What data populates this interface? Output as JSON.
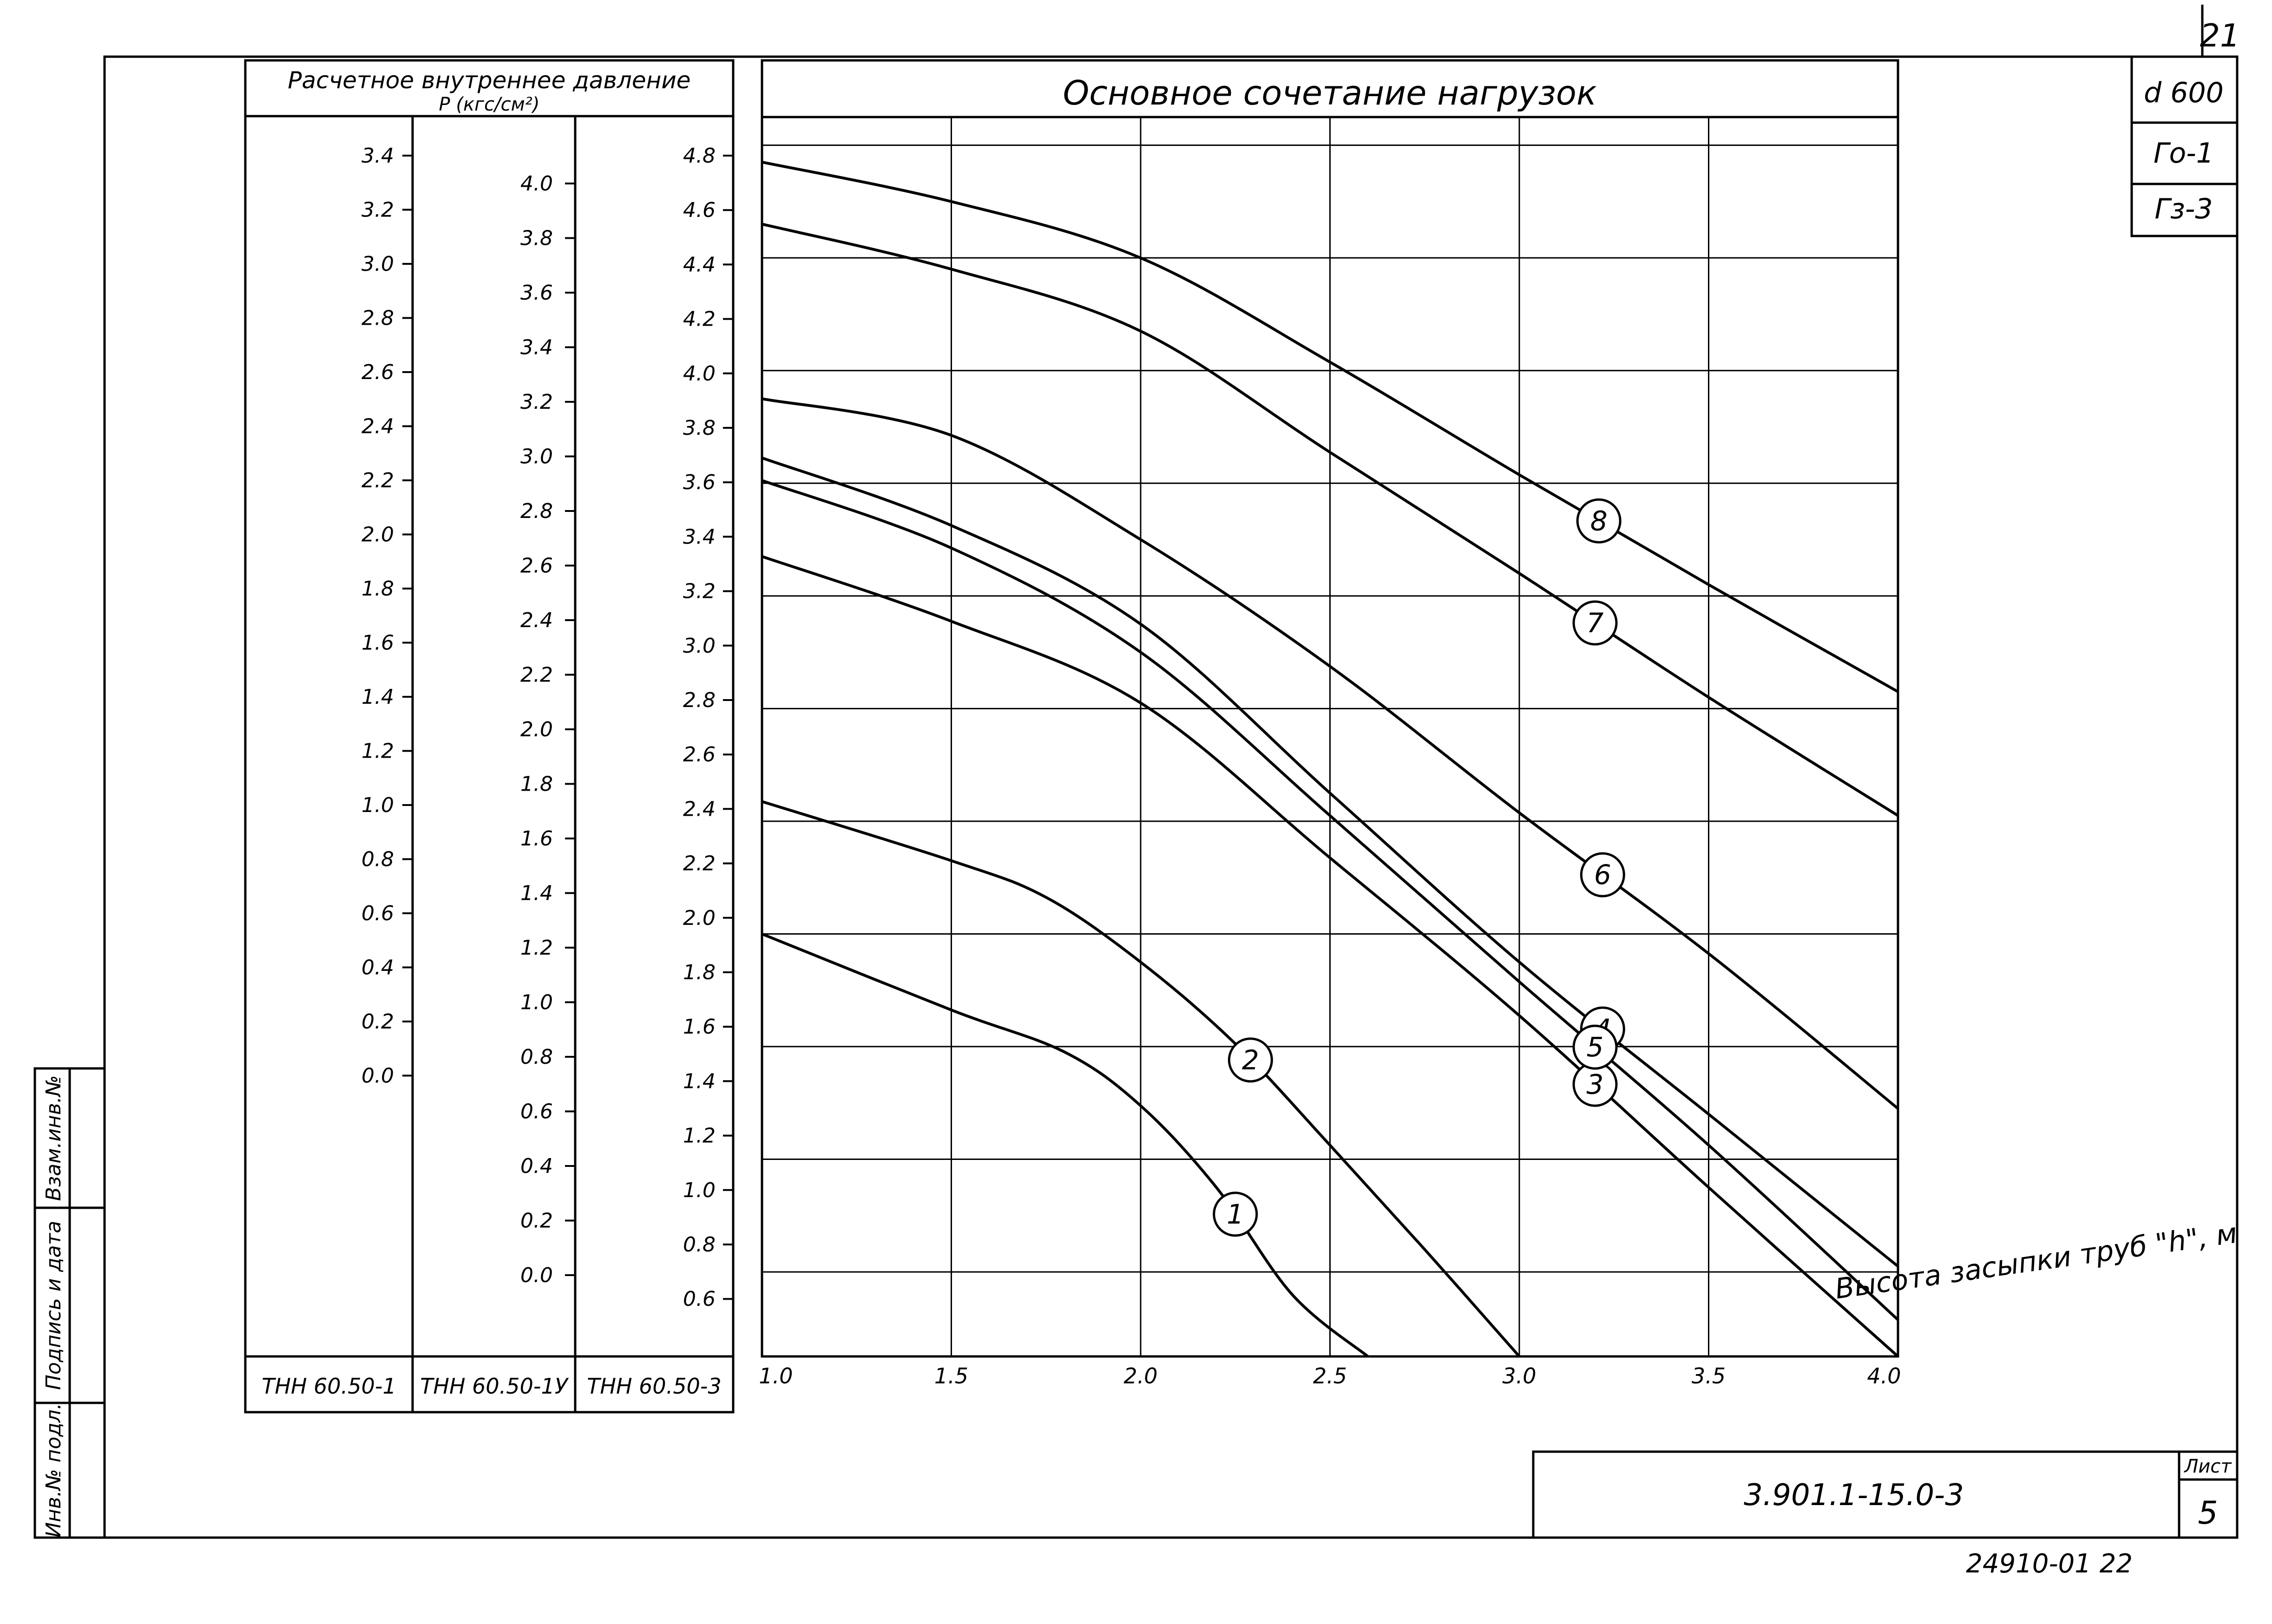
{
  "sheet": {
    "corner_number": "21",
    "stamp_codes": [
      "d 600",
      "Го-1",
      "Гз-3"
    ],
    "document_code": "3.901.1-15.0-3",
    "sheet_label": "Лист",
    "sheet_number": "5",
    "bottom_number": "24910-01 22",
    "side_labels": [
      "Инв.№ подл.",
      "Подпись и дата",
      "Взам.инв.№"
    ]
  },
  "pressure_table": {
    "header_line1": "Расчетное внутреннее давление",
    "header_line2": "P (кгс/см²)",
    "columns": [
      {
        "name": "ТНН 60.50-1",
        "values": [
          "3.4",
          "3.2",
          "3.0",
          "2.8",
          "2.6",
          "2.4",
          "2.2",
          "2.0",
          "1.8",
          "1.6",
          "1.4",
          "1.2",
          "1.0",
          "0.8",
          "0.6",
          "0.4",
          "0.2",
          "0.0"
        ]
      },
      {
        "name": "ТНН 60.50-1У",
        "values": [
          "4.0",
          "3.8",
          "3.6",
          "3.4",
          "3.2",
          "3.0",
          "2.8",
          "2.6",
          "2.4",
          "2.2",
          "2.0",
          "1.8",
          "1.6",
          "1.4",
          "1.2",
          "1.0",
          "0.8",
          "0.6",
          "0.4",
          "0.2",
          "0.0"
        ]
      },
      {
        "name": "ТНН 60.50-3",
        "values": [
          "4.8",
          "4.6",
          "4.4",
          "4.2",
          "4.0",
          "3.8",
          "3.6",
          "3.4",
          "3.2",
          "3.0",
          "2.8",
          "2.6",
          "2.4",
          "2.2",
          "2.0",
          "1.8",
          "1.6",
          "1.4",
          "1.2",
          "1.0",
          "0.8",
          "0.6"
        ]
      }
    ]
  },
  "chart_data": {
    "type": "line",
    "title": "Основное сочетание нагрузок",
    "xlabel": "Высота засыпки труб \"h\", м",
    "xlim": [
      1.0,
      4.0
    ],
    "x_ticks": [
      "1.0",
      "1.5",
      "2.0",
      "2.5",
      "3.0",
      "3.5",
      "4.0"
    ],
    "ylim": [
      0.5,
      4.9
    ],
    "grid": true,
    "series": [
      {
        "name": "1",
        "x": [
          1.0,
          1.5,
          1.8,
          2.0,
          2.2,
          2.4,
          2.6
        ],
        "y": [
          2.0,
          1.73,
          1.58,
          1.39,
          1.1,
          0.72,
          0.5
        ]
      },
      {
        "name": "2",
        "x": [
          1.0,
          1.5,
          1.75,
          2.0,
          2.25,
          2.5,
          2.75,
          3.0
        ],
        "y": [
          2.47,
          2.26,
          2.13,
          1.9,
          1.61,
          1.25,
          0.88,
          0.5
        ]
      },
      {
        "name": "3",
        "x": [
          1.0,
          1.5,
          2.0,
          2.5,
          3.0,
          3.5,
          4.0
        ],
        "y": [
          3.34,
          3.11,
          2.82,
          2.27,
          1.71,
          1.1,
          0.5
        ]
      },
      {
        "name": "4",
        "x": [
          1.0,
          1.5,
          2.0,
          2.5,
          3.0,
          3.5,
          4.0
        ],
        "y": [
          3.69,
          3.45,
          3.1,
          2.5,
          1.9,
          1.36,
          0.82
        ]
      },
      {
        "name": "5",
        "x": [
          1.0,
          1.5,
          2.0,
          2.5,
          3.0,
          3.5,
          4.0
        ],
        "y": [
          3.61,
          3.37,
          3.0,
          2.42,
          1.83,
          1.25,
          0.63
        ]
      },
      {
        "name": "6",
        "x": [
          1.0,
          1.5,
          2.0,
          2.5,
          3.0,
          3.5,
          4.0
        ],
        "y": [
          3.9,
          3.77,
          3.4,
          2.95,
          2.43,
          1.93,
          1.38
        ]
      },
      {
        "name": "7",
        "x": [
          1.0,
          1.5,
          2.0,
          2.5,
          3.0,
          3.5,
          4.0
        ],
        "y": [
          4.52,
          4.36,
          4.14,
          3.71,
          3.28,
          2.84,
          2.42
        ]
      },
      {
        "name": "8",
        "x": [
          1.0,
          1.5,
          2.0,
          2.5,
          3.0,
          3.5,
          4.0
        ],
        "y": [
          4.74,
          4.6,
          4.4,
          4.03,
          3.63,
          3.24,
          2.86
        ]
      }
    ]
  }
}
